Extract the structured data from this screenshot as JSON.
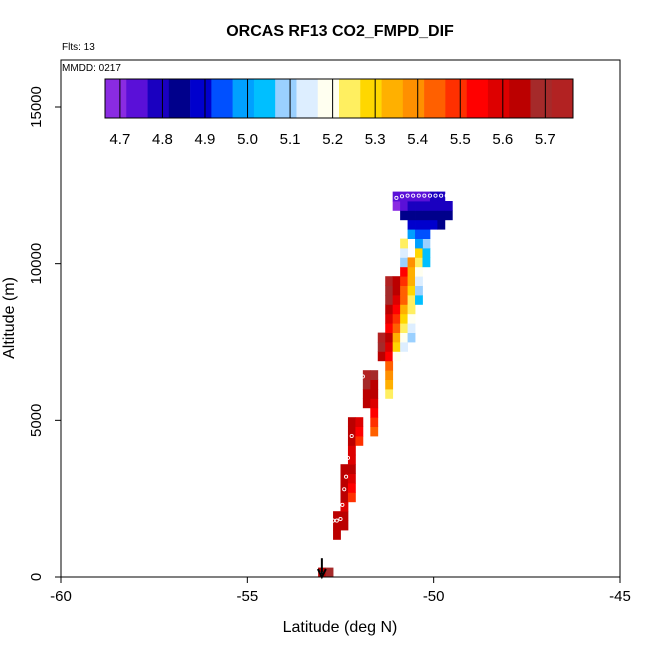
{
  "chart_data": {
    "type": "heatmap",
    "title": "ORCAS RF13 CO2_FMPD_DIF",
    "flights_label": "Flts: 13",
    "date_label": "MMDD: 0217",
    "xlabel": "Latitude (deg N)",
    "ylabel": "Altitude (m)",
    "xlim": [
      -60,
      -45
    ],
    "ylim": [
      0,
      16500
    ],
    "x_ticks": [
      -60,
      -55,
      -50,
      -45
    ],
    "y_ticks": [
      0,
      5000,
      10000,
      15000
    ],
    "grid": false,
    "colorbar": {
      "ticks": [
        4.7,
        4.8,
        4.9,
        5.0,
        5.1,
        5.2,
        5.3,
        5.4,
        5.5,
        5.6,
        5.7
      ],
      "range": [
        4.665,
        5.765
      ],
      "colors": [
        "#8a2be2",
        "#5a10d8",
        "#1a00c0",
        "#00008b",
        "#0000cd",
        "#0050ff",
        "#00a0ff",
        "#00bfff",
        "#9ad0ff",
        "#ddeeff",
        "#fffff0",
        "#ffef60",
        "#ffd700",
        "#ffb000",
        "#ff9000",
        "#ff6000",
        "#ff3000",
        "#ff0000",
        "#dd0000",
        "#bb0000",
        "#a52a2a",
        "#b22222"
      ]
    },
    "cell_size": {
      "lat": 0.2,
      "alt": 300
    },
    "profile_columns": [
      {
        "lat": -53.1,
        "alt_min": 0,
        "alt_max": 300,
        "values": [
          5.66
        ]
      },
      {
        "lat": -52.9,
        "alt_min": 0,
        "alt_max": 300,
        "values": [
          5.67
        ]
      },
      {
        "lat": -52.7,
        "alt_min": 1200,
        "alt_max": 2100,
        "values": [
          5.63,
          5.65,
          5.66
        ]
      },
      {
        "lat": -52.5,
        "alt_min": 1500,
        "alt_max": 2100,
        "values": [
          5.64,
          5.66
        ]
      },
      {
        "lat": -52.5,
        "alt_min": 2100,
        "alt_max": 3600,
        "values": [
          5.6,
          5.62,
          5.63,
          5.64,
          5.65
        ]
      },
      {
        "lat": -52.3,
        "alt_min": 2400,
        "alt_max": 3600,
        "values": [
          5.5,
          5.56,
          5.6,
          5.63
        ]
      },
      {
        "lat": -52.3,
        "alt_min": 3600,
        "alt_max": 5100,
        "values": [
          5.58,
          5.6,
          5.62,
          5.64,
          5.66
        ]
      },
      {
        "lat": -52.1,
        "alt_min": 4200,
        "alt_max": 5100,
        "values": [
          5.48,
          5.55,
          5.6
        ]
      },
      {
        "lat": -51.9,
        "alt_min": 5400,
        "alt_max": 6600,
        "values": [
          5.62,
          5.66,
          5.7,
          5.73
        ]
      },
      {
        "lat": -51.7,
        "alt_min": 4500,
        "alt_max": 6600,
        "values": [
          5.43,
          5.48,
          5.53,
          5.58,
          5.62,
          5.65,
          5.68
        ]
      },
      {
        "lat": -51.5,
        "alt_min": 6900,
        "alt_max": 7800,
        "values": [
          5.65,
          5.7,
          5.73
        ]
      },
      {
        "lat": -51.3,
        "alt_min": 5700,
        "alt_max": 7800,
        "values": [
          5.25,
          5.34,
          5.4,
          5.46,
          5.52,
          5.58,
          5.62
        ]
      },
      {
        "lat": -51.3,
        "alt_min": 7800,
        "alt_max": 9600,
        "values": [
          5.56,
          5.6,
          5.64,
          5.67,
          5.7,
          5.72
        ]
      },
      {
        "lat": -51.1,
        "alt_min": 6900,
        "alt_max": 9600,
        "values": [
          5.2,
          5.28,
          5.36,
          5.44,
          5.5,
          5.56,
          5.6,
          5.63,
          5.65
        ]
      },
      {
        "lat": -50.9,
        "alt_min": 7200,
        "alt_max": 9900,
        "values": [
          5.12,
          5.18,
          5.24,
          5.3,
          5.36,
          5.42,
          5.46,
          5.5,
          5.52
        ]
      },
      {
        "lat": -50.9,
        "alt_min": 9900,
        "alt_max": 10800,
        "values": [
          5.1,
          5.16,
          5.22
        ]
      },
      {
        "lat": -50.7,
        "alt_min": 7500,
        "alt_max": 10200,
        "values": [
          5.08,
          5.12,
          5.18,
          5.22,
          5.26,
          5.3,
          5.34,
          5.36,
          5.38
        ]
      },
      {
        "lat": -50.5,
        "alt_min": 8700,
        "alt_max": 10500,
        "values": [
          5.04,
          5.1,
          5.15,
          5.2,
          5.24,
          5.28
        ]
      },
      {
        "lat": -50.3,
        "alt_min": 9900,
        "alt_max": 10800,
        "values": [
          5.02,
          5.06,
          5.1
        ]
      },
      {
        "lat": -50.7,
        "alt_min": 10800,
        "alt_max": 11700,
        "values": [
          4.98,
          4.9,
          4.84
        ]
      },
      {
        "lat": -50.5,
        "alt_min": 10500,
        "alt_max": 11700,
        "values": [
          5.0,
          4.95,
          4.88,
          4.82
        ]
      },
      {
        "lat": -50.3,
        "alt_min": 10800,
        "alt_max": 12000,
        "values": [
          4.96,
          4.9,
          4.85,
          4.8
        ]
      },
      {
        "lat": -50.1,
        "alt_min": 11100,
        "alt_max": 12000,
        "values": [
          4.88,
          4.83,
          4.79
        ]
      },
      {
        "lat": -49.9,
        "alt_min": 11100,
        "alt_max": 12000,
        "values": [
          4.86,
          4.82,
          4.78
        ]
      },
      {
        "lat": -49.7,
        "alt_min": 11400,
        "alt_max": 12000,
        "values": [
          4.85,
          4.8
        ]
      },
      {
        "lat": -51.1,
        "alt_min": 11700,
        "alt_max": 12300,
        "values": [
          4.7,
          4.72
        ]
      },
      {
        "lat": -50.9,
        "alt_min": 11400,
        "alt_max": 12300,
        "values": [
          4.82,
          4.76,
          4.72
        ]
      },
      {
        "lat": -50.7,
        "alt_min": 11700,
        "alt_max": 12300,
        "values": [
          4.78,
          4.74
        ]
      },
      {
        "lat": -50.5,
        "alt_min": 11700,
        "alt_max": 12300,
        "values": [
          4.79,
          4.76
        ]
      },
      {
        "lat": -50.3,
        "alt_min": 12000,
        "alt_max": 12300,
        "values": [
          4.76
        ]
      },
      {
        "lat": -50.1,
        "alt_min": 12000,
        "alt_max": 12300,
        "values": [
          4.77
        ]
      },
      {
        "lat": -49.9,
        "alt_min": 12000,
        "alt_max": 12300,
        "values": [
          4.78
        ]
      }
    ],
    "flight_track": [
      {
        "lat": -53.0,
        "alt": 100
      },
      {
        "lat": -53.0,
        "alt": 400
      },
      {
        "lat": -52.95,
        "alt": 800
      },
      {
        "lat": -52.9,
        "alt": 1200
      },
      {
        "lat": -52.85,
        "alt": 1600
      },
      {
        "lat": -52.7,
        "alt": 1800
      },
      {
        "lat": -52.6,
        "alt": 1800
      },
      {
        "lat": -52.5,
        "alt": 1850
      },
      {
        "lat": -52.45,
        "alt": 2300
      },
      {
        "lat": -52.4,
        "alt": 2800
      },
      {
        "lat": -52.35,
        "alt": 3200
      },
      {
        "lat": -52.3,
        "alt": 3800
      },
      {
        "lat": -52.2,
        "alt": 4500
      },
      {
        "lat": -52.1,
        "alt": 5200
      },
      {
        "lat": -52.0,
        "alt": 5800
      },
      {
        "lat": -51.9,
        "alt": 6400
      },
      {
        "lat": -51.8,
        "alt": 7000
      },
      {
        "lat": -51.7,
        "alt": 7600
      },
      {
        "lat": -51.6,
        "alt": 8300
      },
      {
        "lat": -51.5,
        "alt": 9000
      },
      {
        "lat": -51.4,
        "alt": 9600
      },
      {
        "lat": -51.3,
        "alt": 10200
      },
      {
        "lat": -51.2,
        "alt": 10800
      },
      {
        "lat": -51.15,
        "alt": 11500
      },
      {
        "lat": -51.0,
        "alt": 12100
      },
      {
        "lat": -50.85,
        "alt": 12150
      },
      {
        "lat": -50.7,
        "alt": 12170
      },
      {
        "lat": -50.55,
        "alt": 12170
      },
      {
        "lat": -50.4,
        "alt": 12170
      },
      {
        "lat": -50.25,
        "alt": 12170
      },
      {
        "lat": -50.1,
        "alt": 12170
      },
      {
        "lat": -49.95,
        "alt": 12170
      },
      {
        "lat": -49.8,
        "alt": 12170
      },
      {
        "lat": -49.65,
        "alt": 12170
      }
    ],
    "takeoff_marker": {
      "lat": -53.0,
      "alt_from": 600,
      "alt_to": 0
    }
  }
}
